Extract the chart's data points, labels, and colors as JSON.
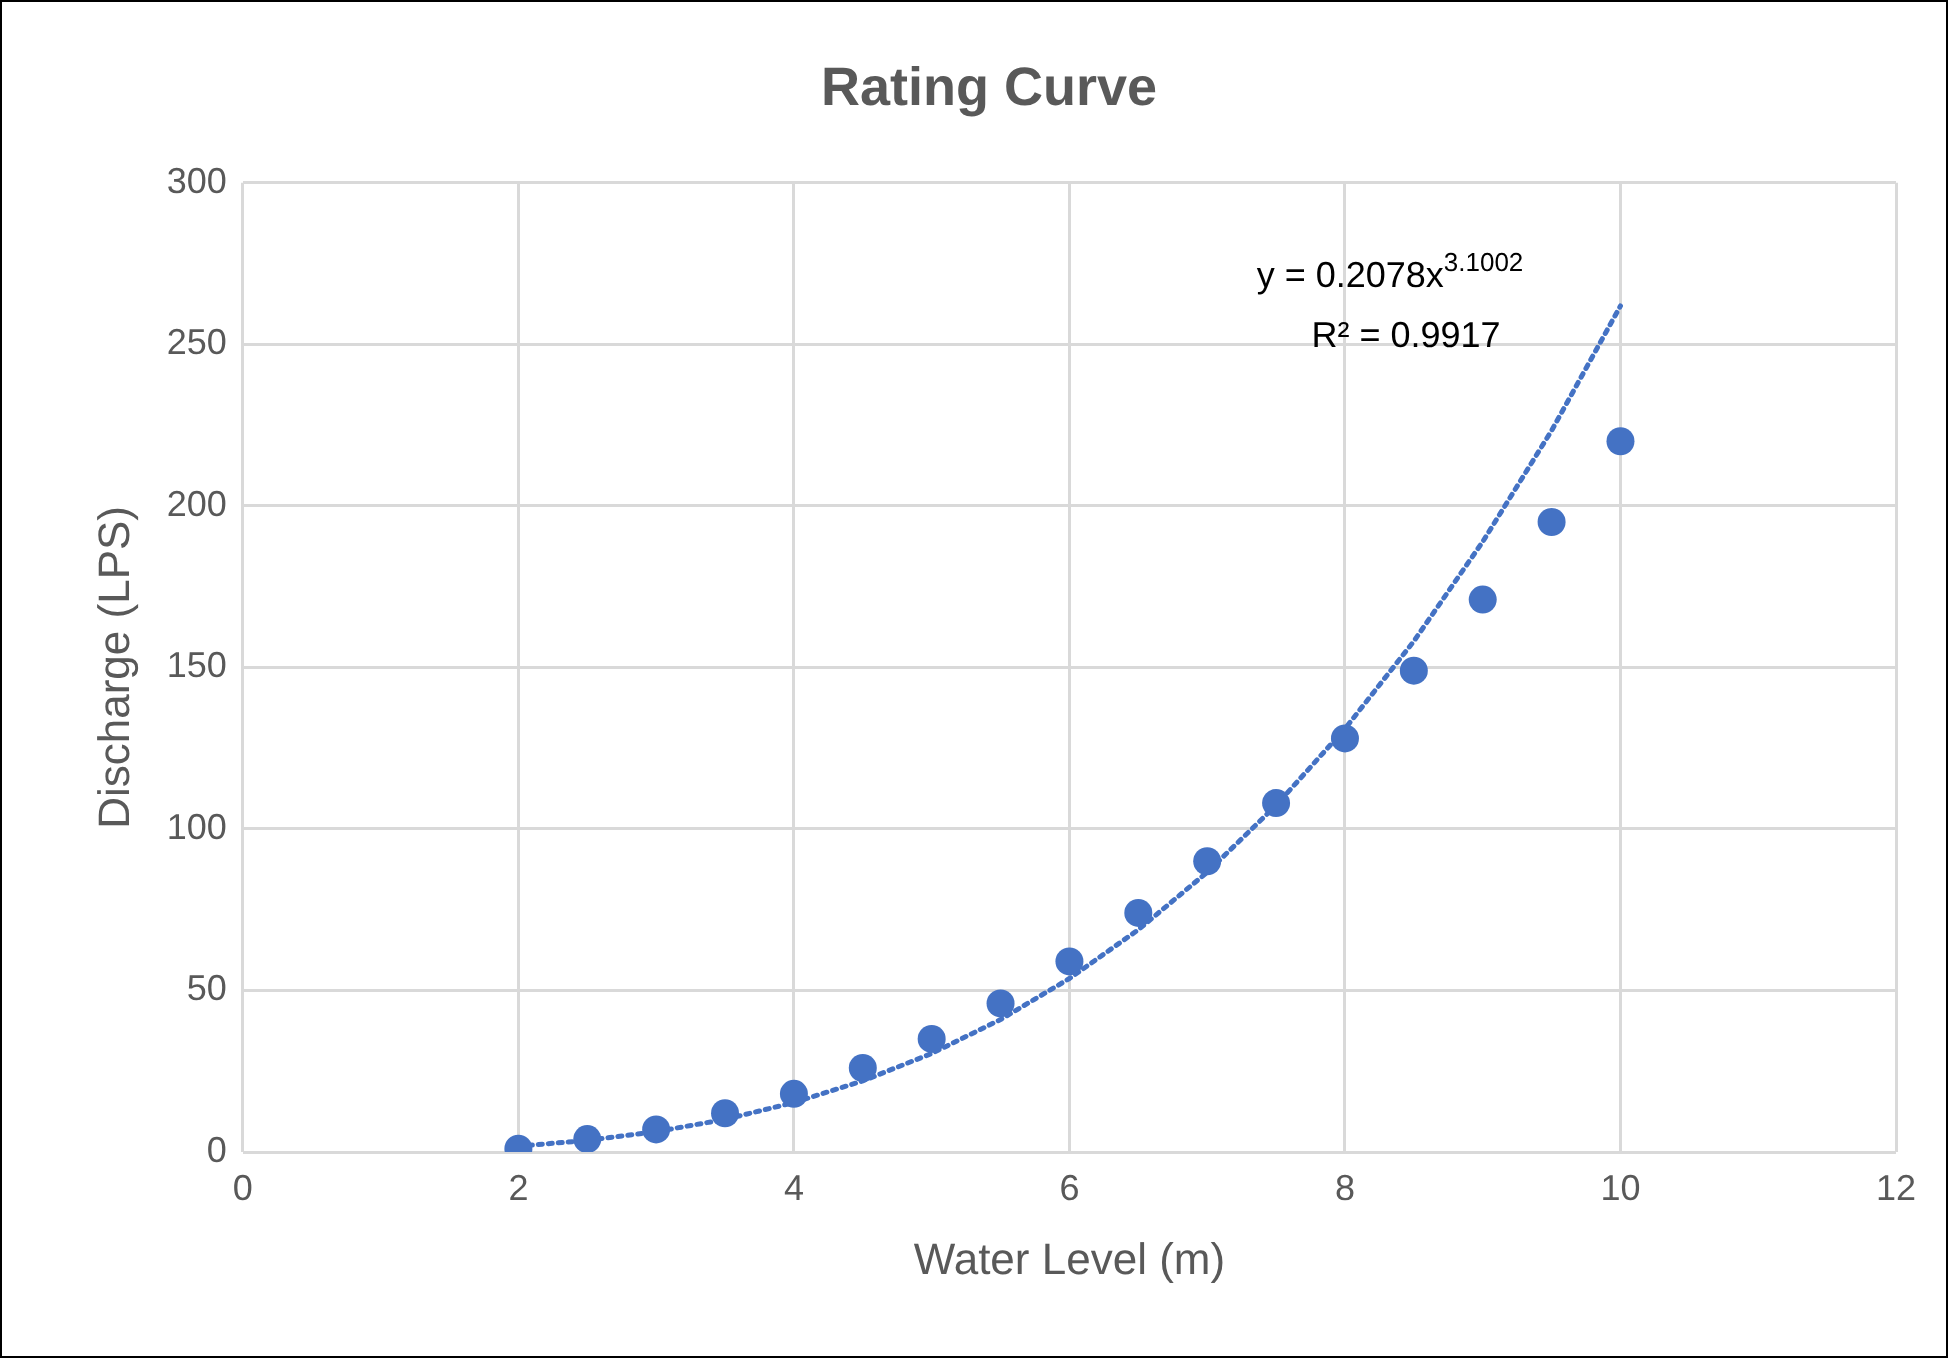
{
  "chart_data": {
    "type": "scatter",
    "title": "Rating Curve",
    "xlabel": "Water Level (m)",
    "ylabel": "Discharge (LPS)",
    "x": [
      2,
      2.5,
      3,
      3.5,
      4,
      4.5,
      5,
      5.5,
      6,
      6.5,
      7,
      7.5,
      8,
      8.5,
      9,
      9.5,
      10
    ],
    "series": [
      {
        "type": "scatter",
        "color": "#4472c4",
        "values": [
          1,
          4,
          7,
          12,
          18,
          26,
          35,
          46,
          59,
          74,
          90,
          108,
          128,
          149,
          171,
          195,
          220
        ]
      },
      {
        "type": "line",
        "color": "#4472c4",
        "line_style": "dotted",
        "marker": "none",
        "x": [
          2,
          2.5,
          3,
          3.5,
          4,
          4.5,
          5,
          5.5,
          6,
          6.5,
          7,
          7.5,
          8,
          8.5,
          9,
          9.5,
          10
        ],
        "values": [
          1.8,
          3.6,
          6.3,
          10.1,
          15.3,
          22,
          30.5,
          41,
          53.7,
          68.8,
          86.6,
          107.3,
          131,
          158.1,
          188.9,
          223.3,
          261.9
        ]
      }
    ],
    "xlim": [
      0,
      12
    ],
    "xticks": [
      0,
      2,
      4,
      6,
      8,
      10,
      12
    ],
    "ylim": [
      0,
      300
    ],
    "yticks": [
      0,
      50,
      100,
      150,
      200,
      250,
      300
    ],
    "grid": true,
    "legend": false,
    "marker": "circle",
    "annotations": [
      "y = 0.2078x$^{3.1002}$",
      "R² = 0.9917"
    ]
  }
}
